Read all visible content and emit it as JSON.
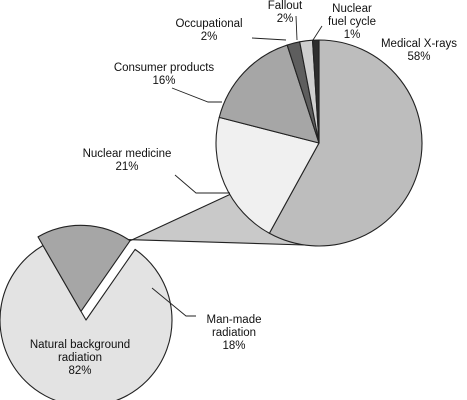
{
  "chart_data": [
    {
      "type": "pie",
      "slices": [
        {
          "key": "natural",
          "label_lines": [
            "Natural background",
            "radiation",
            "82%"
          ],
          "value": 82,
          "color": "#e3e3e3"
        },
        {
          "key": "manmade",
          "label_lines": [
            "Man-made",
            "radiation",
            "18%"
          ],
          "value": 18,
          "color": "#a6a6a6"
        }
      ]
    },
    {
      "type": "pie",
      "slices": [
        {
          "key": "medical",
          "label_lines": [
            "Medical X-rays",
            "58%"
          ],
          "value": 58,
          "color": "#bdbdbd"
        },
        {
          "key": "nuclear-medicine",
          "label_lines": [
            "Nuclear medicine",
            "21%"
          ],
          "value": 21,
          "color": "#f0f0f0"
        },
        {
          "key": "consumer",
          "label_lines": [
            "Consumer products",
            "16%"
          ],
          "value": 16,
          "color": "#a6a6a6"
        },
        {
          "key": "occupational",
          "label_lines": [
            "Occupational",
            "2%"
          ],
          "value": 2,
          "color": "#5e5e5e"
        },
        {
          "key": "fallout",
          "label_lines": [
            "Fallout",
            "2%"
          ],
          "value": 2,
          "color": "#cfcfcf"
        },
        {
          "key": "fuel-cycle",
          "label_lines": [
            "Nuclear",
            "fuel cycle",
            "1%"
          ],
          "value": 1,
          "color": "#2e2e2e"
        }
      ]
    }
  ]
}
